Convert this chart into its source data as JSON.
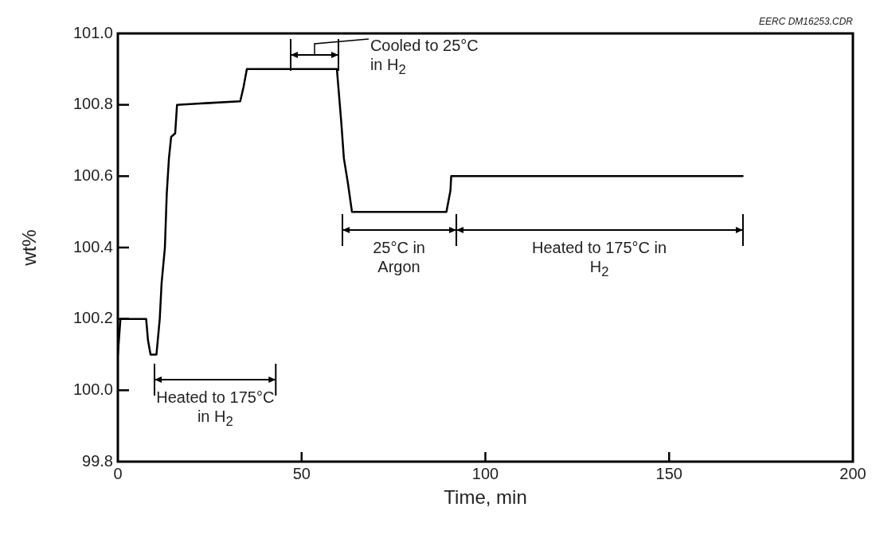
{
  "chart_data": {
    "type": "line",
    "xlabel": "Time, min",
    "ylabel": "wt%",
    "x": [
      0,
      0.7,
      7.7,
      8.2,
      8.9,
      10.5,
      11.4,
      11.9,
      12.8,
      13.3,
      13.9,
      14.5,
      15.6,
      16.1,
      33.3,
      34.2,
      35.1,
      59.6,
      60.8,
      61.5,
      62.6,
      63.7,
      89.4,
      90.5,
      90.7,
      100,
      170
    ],
    "series": [
      {
        "color": "#000000",
        "values": [
          100.1,
          100.2,
          100.2,
          100.14,
          100.1,
          100.1,
          100.2,
          100.3,
          100.4,
          100.55,
          100.65,
          100.71,
          100.72,
          100.8,
          100.81,
          100.85,
          100.9,
          100.9,
          100.75,
          100.65,
          100.58,
          100.5,
          100.5,
          100.56,
          100.6,
          100.6,
          100.6
        ]
      }
    ],
    "xlim": [
      0,
      200
    ],
    "xticks": [
      0,
      50,
      100,
      150,
      200
    ],
    "ylim": [
      99.8,
      101.0
    ],
    "yticks": [
      {
        "value": 99.8,
        "label": "99.8"
      },
      {
        "value": 100.0,
        "label": "100.0"
      },
      {
        "value": 100.2,
        "label": "100.2"
      },
      {
        "value": 100.4,
        "label": "100.4"
      },
      {
        "value": 100.6,
        "label": "100.6"
      },
      {
        "value": 100.8,
        "label": "100.8"
      },
      {
        "value": 101.0,
        "label": "101.0"
      }
    ],
    "annotations": [
      "Heated to 175°C in H$_{2}$",
      "Cooled to 25°C in H$_{2}$",
      "25°C in Argon",
      "Heated to 175°C in H$_{2}$",
      "EERC DM16253.CDR"
    ],
    "marker": "none",
    "line_style": "solid",
    "legend": false
  }
}
